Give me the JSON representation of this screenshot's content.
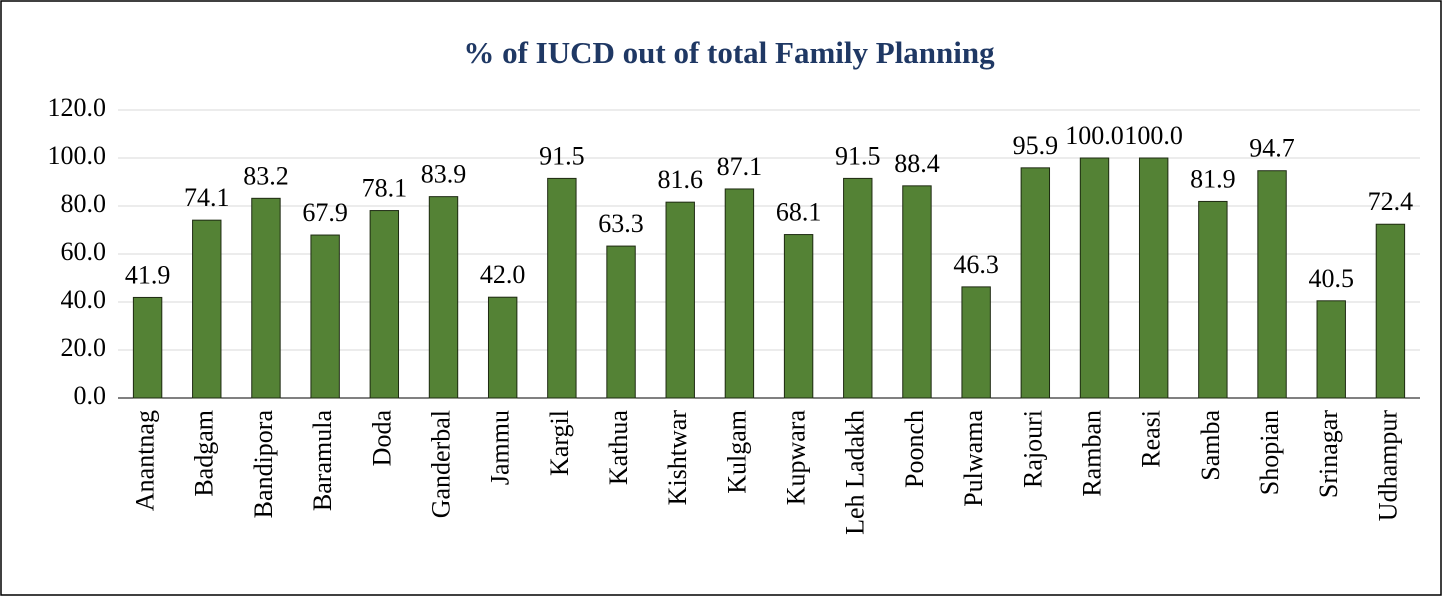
{
  "chart_data": {
    "type": "bar",
    "title": "% of IUCD out of total Family Planning",
    "categories": [
      "Anantnag",
      "Badgam",
      "Bandipora",
      "Baramula",
      "Doda",
      "Ganderbal",
      "Jammu",
      "Kargil",
      "Kathua",
      "Kishtwar",
      "Kulgam",
      "Kupwara",
      "Leh Ladakh",
      "Poonch",
      "Pulwama",
      "Rajouri",
      "Ramban",
      "Reasi",
      "Samba",
      "Shopian",
      "Srinagar",
      "Udhampur"
    ],
    "values": [
      41.9,
      74.1,
      83.2,
      67.9,
      78.1,
      83.9,
      42.0,
      91.5,
      63.3,
      81.6,
      87.1,
      68.1,
      91.5,
      88.4,
      46.3,
      95.9,
      100.0,
      100.0,
      81.9,
      94.7,
      40.5,
      72.4
    ],
    "value_labels": [
      "41.9",
      "74.1",
      "83.2",
      "67.9",
      "78.1",
      "83.9",
      "42.0",
      "91.5",
      "63.3",
      "81.6",
      "87.1",
      "68.1",
      "91.5",
      "88.4",
      "46.3",
      "95.9",
      "100.0",
      "100.0",
      "81.9",
      "94.7",
      "40.5",
      "72.4"
    ],
    "color": "#548235",
    "ylim": [
      0,
      120
    ],
    "yticks": [
      {
        "value": 0,
        "label": "0.0"
      },
      {
        "value": 20,
        "label": "20.0"
      },
      {
        "value": 40,
        "label": "40.0"
      },
      {
        "value": 60,
        "label": "60.0"
      },
      {
        "value": 80,
        "label": "80.0"
      },
      {
        "value": 100,
        "label": "100.0"
      },
      {
        "value": 120,
        "label": "120.0"
      }
    ],
    "grid": true
  }
}
